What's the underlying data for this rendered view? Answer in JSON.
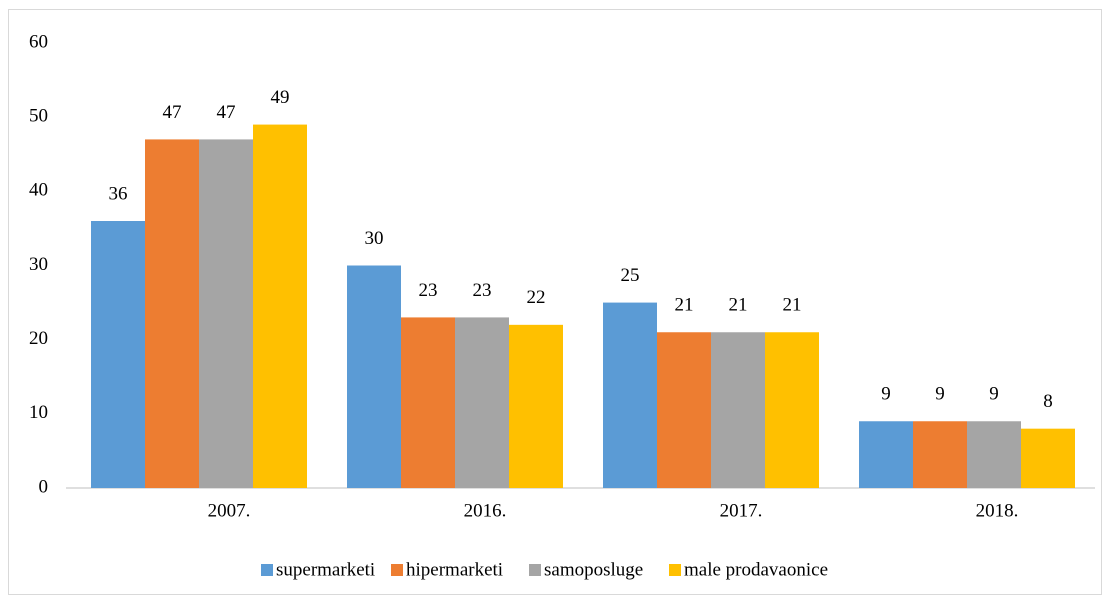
{
  "chart_data": {
    "type": "bar",
    "categories": [
      "2007.",
      "2016.",
      "2017.",
      "2018."
    ],
    "series": [
      {
        "name": "supermarketi",
        "color": "#5b9bd5",
        "values": [
          36,
          30,
          25,
          9
        ]
      },
      {
        "name": "hipermarketi",
        "color": "#ed7d31",
        "values": [
          47,
          23,
          21,
          9
        ]
      },
      {
        "name": "samoposluge",
        "color": "#a5a5a5",
        "values": [
          47,
          23,
          21,
          9
        ]
      },
      {
        "name": "male prodavaonice",
        "color": "#ffc000",
        "values": [
          49,
          22,
          21,
          8
        ]
      }
    ],
    "ylim": [
      0,
      60
    ],
    "yticks": [
      0,
      10,
      20,
      30,
      40,
      50,
      60
    ],
    "grid": false,
    "legend": "bottom",
    "data_labels": true
  }
}
